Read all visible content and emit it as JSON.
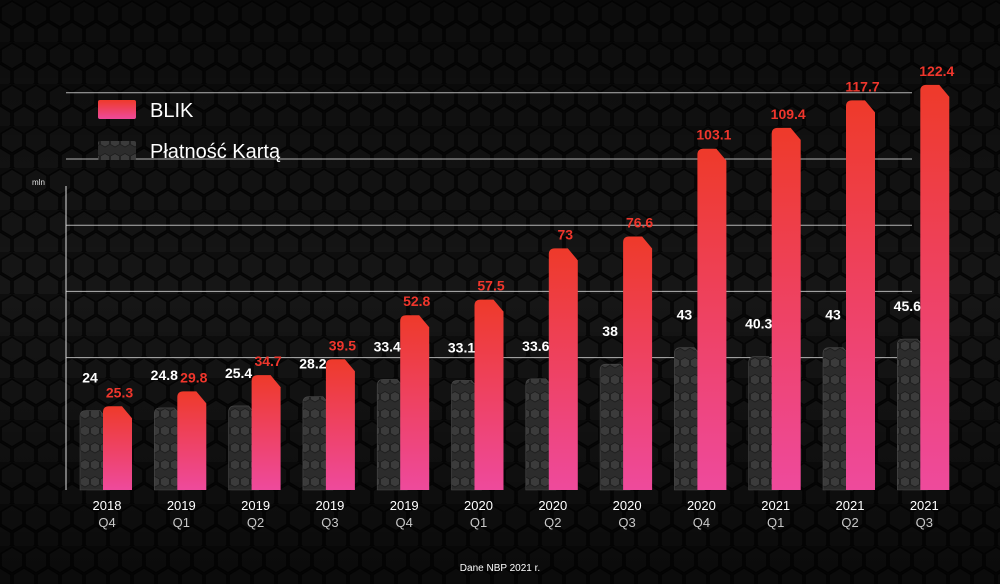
{
  "chart_data": {
    "type": "bar",
    "title": "",
    "ylabel": "mln",
    "ylim": [
      0,
      130
    ],
    "grid": true,
    "legend_position": "top-left",
    "categories": [
      {
        "year": "2018",
        "quarter": "Q4"
      },
      {
        "year": "2019",
        "quarter": "Q1"
      },
      {
        "year": "2019",
        "quarter": "Q2"
      },
      {
        "year": "2019",
        "quarter": "Q3"
      },
      {
        "year": "2019",
        "quarter": "Q4"
      },
      {
        "year": "2020",
        "quarter": "Q1"
      },
      {
        "year": "2020",
        "quarter": "Q2"
      },
      {
        "year": "2020",
        "quarter": "Q3"
      },
      {
        "year": "2020",
        "quarter": "Q4"
      },
      {
        "year": "2021",
        "quarter": "Q1"
      },
      {
        "year": "2021",
        "quarter": "Q2"
      },
      {
        "year": "2021",
        "quarter": "Q3"
      }
    ],
    "series": [
      {
        "name": "BLIK",
        "color": "#ee3a2a",
        "color_bottom": "#ee4a9c",
        "values": [
          25.3,
          29.8,
          34.7,
          39.5,
          52.8,
          57.5,
          73,
          76.6,
          103.1,
          109.4,
          117.7,
          122.4
        ]
      },
      {
        "name": "Płatność Kartą",
        "color": "#3a3a3a",
        "values": [
          24,
          24.8,
          25.4,
          28.2,
          33.4,
          33.1,
          33.6,
          38,
          43,
          40.3,
          43,
          45.6
        ]
      }
    ],
    "source_note": "Dane NBP 2021 r."
  }
}
